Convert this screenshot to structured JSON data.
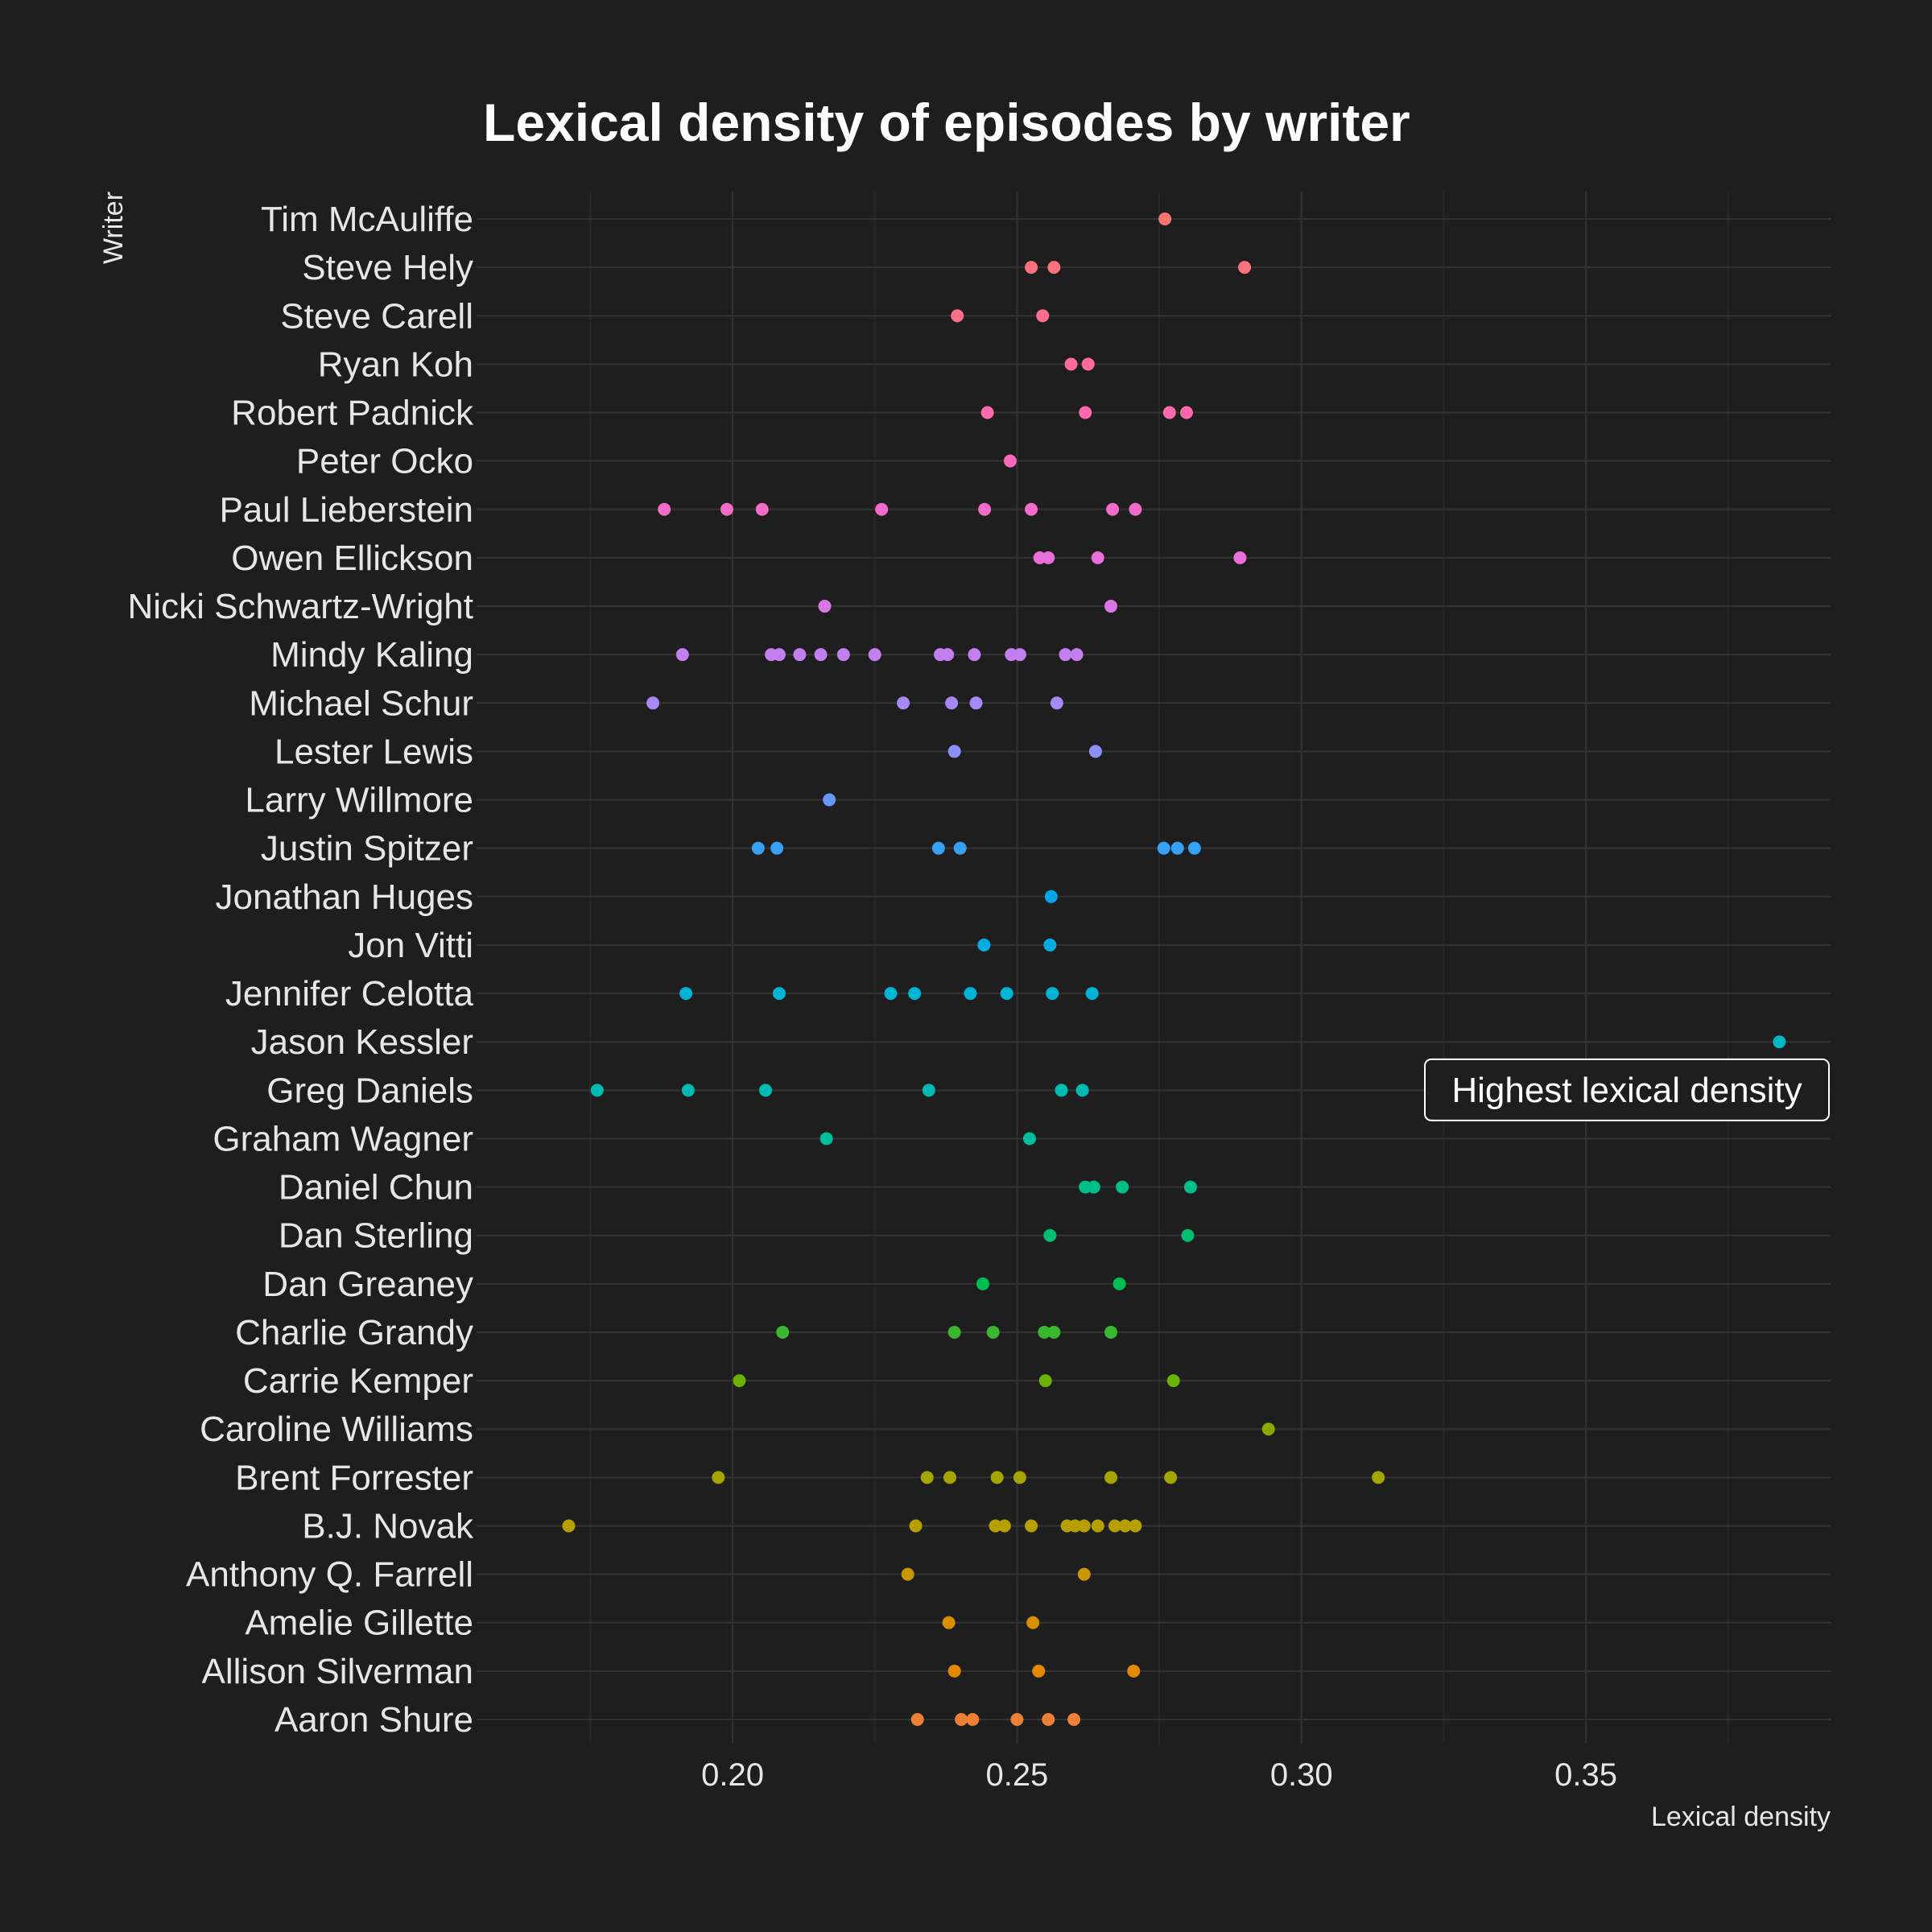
{
  "chart_data": {
    "type": "scatter",
    "title": "Lexical density of episodes by writer",
    "xlabel": "Lexical density",
    "ylabel": "Writer",
    "xlim": [
      0.155,
      0.393
    ],
    "x_ticks": [
      "0.20",
      "0.25",
      "0.30",
      "0.35"
    ],
    "grid": true,
    "legend": "none",
    "annotation": {
      "text": "Highest lexical density",
      "writer": "Jason Kessler",
      "x": 0.384
    },
    "series": [
      {
        "writer": "Tim McAuliffe",
        "color": "#f8766d",
        "values": [
          0.276
        ]
      },
      {
        "writer": "Steve Hely",
        "color": "#fb727c",
        "values": [
          0.2525,
          0.2565,
          0.29
        ]
      },
      {
        "writer": "Steve Carell",
        "color": "#fd6e8d",
        "values": [
          0.2395,
          0.2545
        ]
      },
      {
        "writer": "Ryan Koh",
        "color": "#fe6b9c",
        "values": [
          0.2595,
          0.2625
        ]
      },
      {
        "writer": "Robert Padnick",
        "color": "#fd69ac",
        "values": [
          0.2448,
          0.262,
          0.2768,
          0.2798
        ]
      },
      {
        "writer": "Peter Ocko",
        "color": "#fa69bc",
        "values": [
          0.2488
        ]
      },
      {
        "writer": "Paul Lieberstein",
        "color": "#f46bcb",
        "values": [
          0.188,
          0.199,
          0.2052,
          0.2262,
          0.2443,
          0.2525,
          0.2668,
          0.2708
        ]
      },
      {
        "writer": "Owen Ellickson",
        "color": "#e86fd9",
        "values": [
          0.254,
          0.2555,
          0.2642,
          0.2892
        ]
      },
      {
        "writer": "Nicki Schwartz-Wright",
        "color": "#d876e6",
        "values": [
          0.2162,
          0.2665
        ]
      },
      {
        "writer": "Mindy Kaling",
        "color": "#c37ef0",
        "values": [
          0.1912,
          0.2068,
          0.2082,
          0.2118,
          0.2155,
          0.2195,
          0.225,
          0.2365,
          0.2378,
          0.2425,
          0.249,
          0.2505,
          0.2585,
          0.2605
        ]
      },
      {
        "writer": "Michael Schur",
        "color": "#a887f6",
        "values": [
          0.186,
          0.23,
          0.2385,
          0.2428,
          0.257
        ]
      },
      {
        "writer": "Lester Lewis",
        "color": "#8a8ff9",
        "values": [
          0.239,
          0.2638
        ]
      },
      {
        "writer": "Larry Willmore",
        "color": "#6698f9",
        "values": [
          0.217
        ]
      },
      {
        "writer": "Justin Spitzer",
        "color": "#35a0f5",
        "values": [
          0.2045,
          0.2078,
          0.2362,
          0.24,
          0.2758,
          0.2782,
          0.2812
        ]
      },
      {
        "writer": "Jonathan Huges",
        "color": "#00a7ee",
        "values": [
          0.256
        ]
      },
      {
        "writer": "Jon Vitti",
        "color": "#00aee3",
        "values": [
          0.2442,
          0.2558
        ]
      },
      {
        "writer": "Jennifer Celotta",
        "color": "#00b4d5",
        "values": [
          0.1918,
          0.2082,
          0.2278,
          0.232,
          0.2418,
          0.2482,
          0.2562,
          0.2632
        ]
      },
      {
        "writer": "Jason Kessler",
        "color": "#00b8c5",
        "values": [
          0.384
        ]
      },
      {
        "writer": "Greg Daniels",
        "color": "#00bbb2",
        "values": [
          0.1762,
          0.1922,
          0.2058,
          0.2345,
          0.2578,
          0.2615
        ]
      },
      {
        "writer": "Graham Wagner",
        "color": "#00bd9e",
        "values": [
          0.2165,
          0.2522
        ]
      },
      {
        "writer": "Daniel Chun",
        "color": "#00be88",
        "values": [
          0.262,
          0.2635,
          0.2685,
          0.2805
        ]
      },
      {
        "writer": "Dan Sterling",
        "color": "#00be70",
        "values": [
          0.2558,
          0.28
        ]
      },
      {
        "writer": "Dan Greaney",
        "color": "#00be53",
        "values": [
          0.244,
          0.268
        ]
      },
      {
        "writer": "Charlie Grandy",
        "color": "#39b72f",
        "values": [
          0.2088,
          0.239,
          0.2458,
          0.2548,
          0.2565,
          0.2665
        ]
      },
      {
        "writer": "Carrie Kemper",
        "color": "#6ab100",
        "values": [
          0.2012,
          0.255,
          0.2775
        ]
      },
      {
        "writer": "Caroline Williams",
        "color": "#8aaa00",
        "values": [
          0.2942
        ]
      },
      {
        "writer": "Brent Forrester",
        "color": "#a3a500",
        "values": [
          0.1975,
          0.2342,
          0.2382,
          0.2465,
          0.2505,
          0.2665,
          0.277,
          0.3135
        ]
      },
      {
        "writer": "B.J. Novak",
        "color": "#b79f00",
        "values": [
          0.1712,
          0.2322,
          0.2462,
          0.2478,
          0.2525,
          0.2588,
          0.2602,
          0.2618,
          0.2642,
          0.2672,
          0.269,
          0.2708
        ]
      },
      {
        "writer": "Anthony Q. Farrell",
        "color": "#c99800",
        "values": [
          0.2308,
          0.2618
        ]
      },
      {
        "writer": "Amelie Gillette",
        "color": "#d89000",
        "values": [
          0.238,
          0.2528
        ]
      },
      {
        "writer": "Allison Silverman",
        "color": "#e48800",
        "values": [
          0.239,
          0.2538,
          0.2705
        ]
      },
      {
        "writer": "Aaron Shure",
        "color": "#ee7f35",
        "values": [
          0.2325,
          0.2402,
          0.2422,
          0.25,
          0.2555,
          0.26
        ]
      }
    ]
  }
}
